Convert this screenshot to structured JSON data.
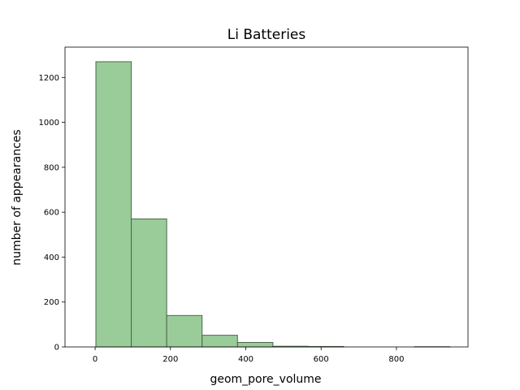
{
  "chart_data": {
    "type": "bar",
    "title": "Li Batteries",
    "xlabel": "geom_pore_volume",
    "ylabel": "number of appearances",
    "bin_edges": [
      2,
      96,
      190,
      284,
      378,
      472,
      566,
      660,
      754,
      848,
      942
    ],
    "values": [
      1270,
      570,
      140,
      52,
      20,
      3,
      2,
      0,
      0,
      1
    ],
    "xlim": [
      -80,
      990
    ],
    "ylim": [
      0,
      1335
    ],
    "xticks": [
      0,
      200,
      400,
      600,
      800
    ],
    "yticks": [
      0,
      200,
      400,
      600,
      800,
      1000,
      1200
    ],
    "bar_color": "#99cc99",
    "edge_color": "#4d664d",
    "grid": false,
    "legend": "none"
  }
}
